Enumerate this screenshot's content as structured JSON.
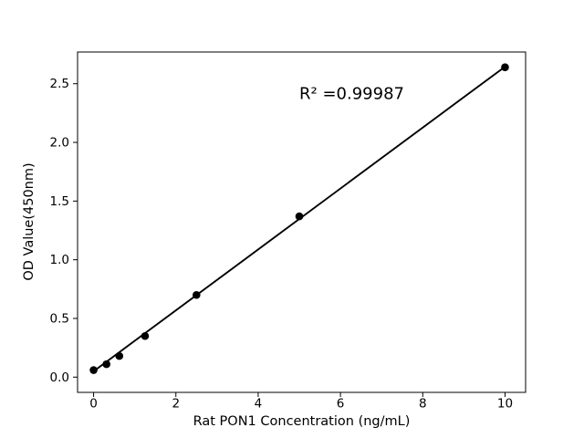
{
  "figure": {
    "background": "#ffffff"
  },
  "chart_data": {
    "type": "scatter",
    "title": "",
    "xlabel": "Rat PON1 Concentration (ng/mL)",
    "ylabel": "OD Value(450nm)",
    "x": [
      0,
      0.3125,
      0.625,
      1.25,
      2.5,
      5,
      10
    ],
    "y": [
      0.06,
      0.11,
      0.18,
      0.35,
      0.7,
      1.37,
      2.64
    ],
    "fit_line": {
      "x1": 0,
      "y1": 0.05,
      "x2": 10,
      "y2": 2.645
    },
    "annotation": {
      "text": "R² =0.99987",
      "x": 5.0,
      "y": 2.41
    },
    "x_ticks": [
      0,
      2,
      4,
      6,
      8,
      10
    ],
    "x_tick_labels": [
      "0",
      "2",
      "4",
      "6",
      "8",
      "10"
    ],
    "y_ticks": [
      0,
      0.5,
      1.0,
      1.5,
      2.0,
      2.5
    ],
    "y_tick_labels": [
      "0.0",
      "0.5",
      "1.0",
      "1.5",
      "2.0",
      "2.5"
    ],
    "xlim": [
      -0.39,
      10.5
    ],
    "ylim": [
      -0.13,
      2.77
    ],
    "grid": false,
    "legend_position": "none",
    "marker_color": "#000000",
    "line_color": "#000000",
    "axis_color": "#000000"
  }
}
